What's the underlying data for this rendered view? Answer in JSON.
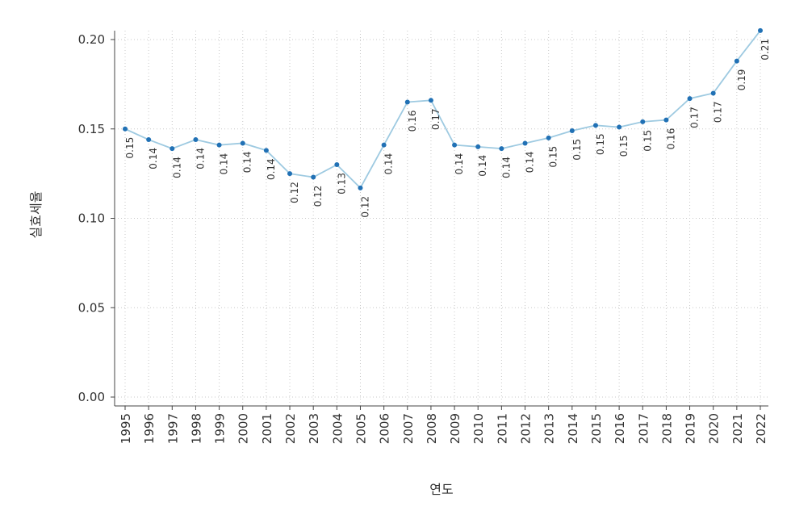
{
  "chart_data": {
    "type": "line",
    "title": "",
    "xlabel": "연도",
    "ylabel": "실효세율",
    "ylim": [
      0.0,
      0.2
    ],
    "yticks": [
      "0.00",
      "0.05",
      "0.10",
      "0.15",
      "0.20"
    ],
    "grid": true,
    "legend": "none",
    "colors": {
      "line": "#9ecae1",
      "point": "#2171b5"
    },
    "x": [
      "1995",
      "1996",
      "1997",
      "1998",
      "1999",
      "2000",
      "2001",
      "2002",
      "2003",
      "2004",
      "2005",
      "2006",
      "2007",
      "2008",
      "2009",
      "2010",
      "2011",
      "2012",
      "2013",
      "2014",
      "2015",
      "2016",
      "2017",
      "2018",
      "2019",
      "2020",
      "2021",
      "2022"
    ],
    "series": [
      {
        "values": [
          0.15,
          0.144,
          0.139,
          0.144,
          0.141,
          0.142,
          0.138,
          0.125,
          0.123,
          0.13,
          0.117,
          0.141,
          0.165,
          0.166,
          0.141,
          0.14,
          0.139,
          0.142,
          0.145,
          0.149,
          0.152,
          0.151,
          0.154,
          0.155,
          0.167,
          0.17,
          0.188,
          0.205
        ],
        "labels": [
          "0.15",
          "0.14",
          "0.14",
          "0.14",
          "0.14",
          "0.14",
          "0.14",
          "0.12",
          "0.12",
          "0.13",
          "0.12",
          "0.14",
          "0.16",
          "0.17",
          "0.14",
          "0.14",
          "0.14",
          "0.14",
          "0.15",
          "0.15",
          "0.15",
          "0.15",
          "0.15",
          "0.16",
          "0.17",
          "0.17",
          "0.19",
          "0.21"
        ]
      }
    ]
  }
}
